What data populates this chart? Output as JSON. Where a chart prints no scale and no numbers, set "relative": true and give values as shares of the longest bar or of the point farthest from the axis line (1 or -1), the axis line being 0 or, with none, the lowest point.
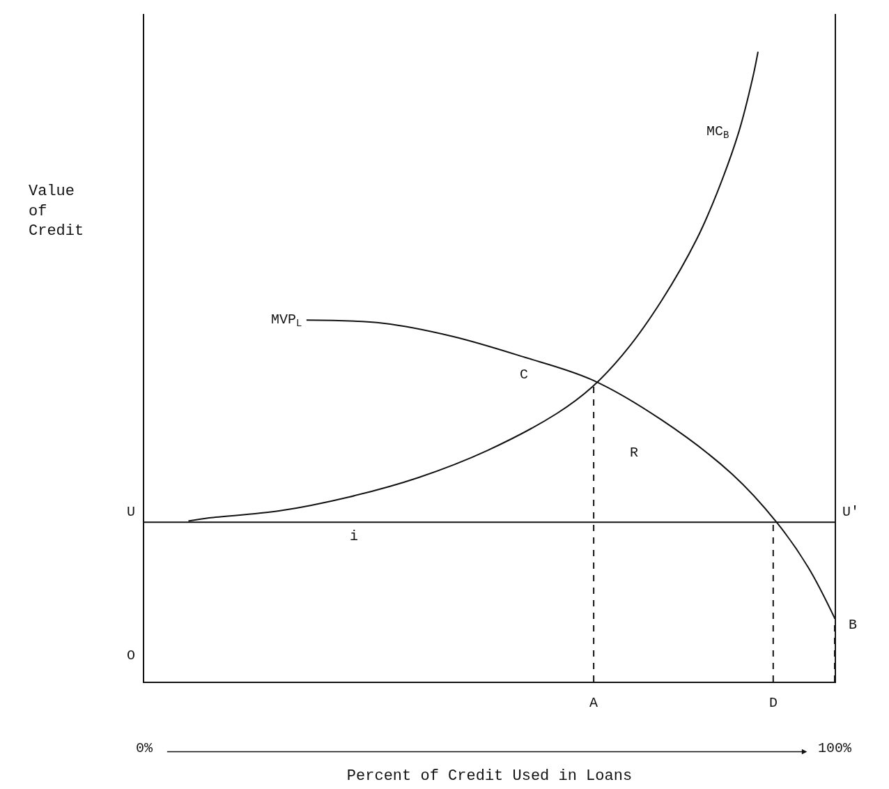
{
  "chart_data": {
    "type": "line",
    "relative": true,
    "xlabel": "Percent of Credit Used in Loans",
    "ylabel": "Value of Credit",
    "xlim": [
      0,
      100
    ],
    "xticks": [
      {
        "value": 0,
        "label": "0%"
      },
      {
        "value": 100,
        "label": "100%"
      }
    ],
    "series": [
      {
        "name": "MC$_{B}$",
        "color": "#111111",
        "x": [
          6.4,
          9.4,
          19.5,
          29.6,
          39.7,
          49.7,
          59.8,
          64.9,
          69.9,
          75.0,
          80.0,
          83.0,
          86.1,
          88.1,
          88.9
        ],
        "values": [
          0.255,
          0.26,
          0.271,
          0.293,
          0.324,
          0.367,
          0.426,
          0.468,
          0.527,
          0.606,
          0.702,
          0.777,
          0.872,
          0.957,
          1.0
        ]
      },
      {
        "name": "MVP$_{L}$",
        "color": "#111111",
        "x": [
          23.5,
          34.6,
          44.7,
          54.8,
          64.9,
          75.0,
          85.1,
          91.6,
          96.2,
          100
        ],
        "values": [
          0.574,
          0.569,
          0.548,
          0.516,
          0.479,
          0.415,
          0.33,
          0.253,
          0.181,
          0.101
        ]
      }
    ],
    "ref_lines": [
      {
        "axis": "y",
        "value": 0.253,
        "color": "#111111",
        "line_style": "solid"
      },
      {
        "axis": "x",
        "value": 65.1,
        "label": "A",
        "color": "#111111",
        "line_style": "dashed"
      },
      {
        "axis": "x",
        "value": 91.1,
        "label": "D",
        "color": "#111111",
        "line_style": "dashed"
      },
      {
        "axis": "x",
        "value": 100,
        "color": "#111111",
        "line_style": "dashed"
      }
    ],
    "annotations": [
      "C",
      "R",
      "i",
      "O",
      "B",
      "U",
      "U'"
    ],
    "legend": false,
    "marker": "none",
    "line_style": "solid"
  }
}
